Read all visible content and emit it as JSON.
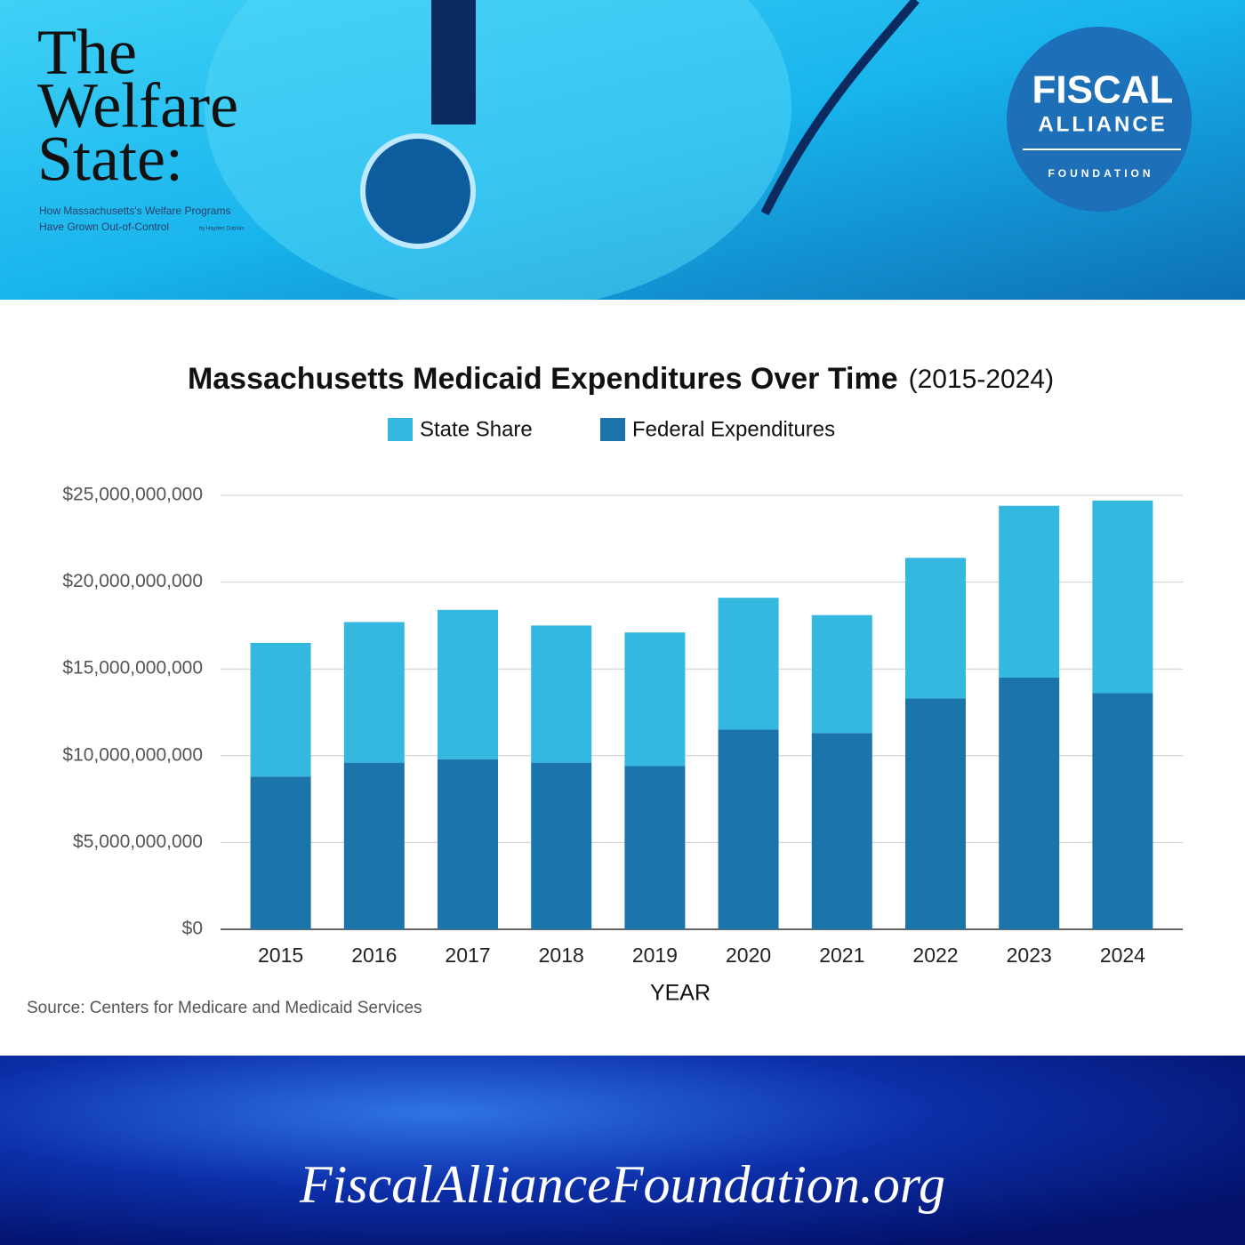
{
  "header": {
    "title_lines": [
      "The",
      "Welfare",
      "State:"
    ],
    "subtitle_lines": [
      "How Massachusetts's Welfare Programs",
      "Have Grown Out-of-Control"
    ],
    "byline": "by Hayden Dublois"
  },
  "logo": {
    "line1": "FISCAL",
    "line2": "ALLIANCE",
    "line3": "FOUNDATION"
  },
  "chart_data": {
    "type": "stacked_bar",
    "title": "Massachusetts Medicaid Expenditures Over Time",
    "subtitle": "(2015-2024)",
    "x_label": "YEAR",
    "categories": [
      "2015",
      "2016",
      "2017",
      "2018",
      "2019",
      "2020",
      "2021",
      "2022",
      "2023",
      "2024"
    ],
    "series": [
      {
        "name": "State Share",
        "color": "#35b8e0",
        "values": [
          7700000000,
          8100000000,
          8600000000,
          7900000000,
          7700000000,
          7600000000,
          6800000000,
          8100000000,
          9900000000,
          11100000000
        ]
      },
      {
        "name": "Federal Expenditures",
        "color": "#1b75ab",
        "values": [
          8800000000,
          9600000000,
          9800000000,
          9600000000,
          9400000000,
          11500000000,
          11300000000,
          13300000000,
          14500000000,
          13600000000
        ]
      }
    ],
    "ylim": [
      0,
      25000000000
    ],
    "yticks": [
      {
        "value": 0,
        "label": "$0"
      },
      {
        "value": 5000000000,
        "label": "$5,000,000,000"
      },
      {
        "value": 10000000000,
        "label": "$10,000,000,000"
      },
      {
        "value": 15000000000,
        "label": "$15,000,000,000"
      },
      {
        "value": 20000000000,
        "label": "$20,000,000,000"
      },
      {
        "value": 25000000000,
        "label": "$25,000,000,000"
      }
    ],
    "grid": true,
    "source": "Source: Centers for Medicare and Medicaid Services"
  },
  "footer": {
    "url": "FiscalAllianceFoundation.org"
  }
}
